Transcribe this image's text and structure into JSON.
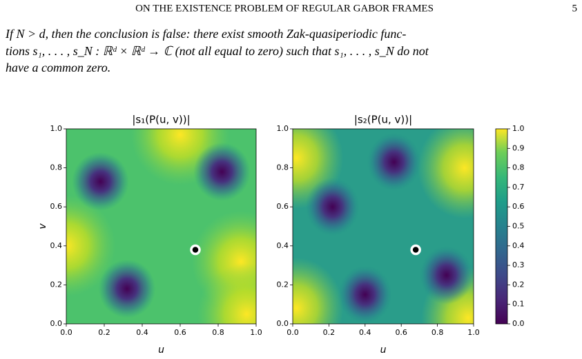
{
  "header": {
    "title": "ON THE EXISTENCE PROBLEM OF REGULAR GABOR FRAMES",
    "page": "5"
  },
  "paragraph": [
    "If N > d, then the conclusion is false: there exist smooth Zak-quasiperiodic func-",
    "tions s₁, . . . , s_N : ℝᵈ × ℝᵈ → ℂ (not all equal to zero) such that s₁, . . . , s_N do not",
    "have a common zero."
  ],
  "chart_data": [
    {
      "type": "heatmap",
      "title": "|s₁(P(u, v))|",
      "xlabel": "u",
      "ylabel": "v",
      "xlim": [
        0,
        1
      ],
      "ylim": [
        0,
        1
      ],
      "xticks": [
        {
          "value": 0,
          "label": "0.0"
        },
        {
          "value": 0.2,
          "label": "0.2"
        },
        {
          "value": 0.4,
          "label": "0.4"
        },
        {
          "value": 0.6,
          "label": "0.6"
        },
        {
          "value": 0.8,
          "label": "0.8"
        },
        {
          "value": 1,
          "label": "1.0"
        }
      ],
      "yticks": [
        {
          "value": 0,
          "label": "0.0"
        },
        {
          "value": 0.2,
          "label": "0.2"
        },
        {
          "value": 0.4,
          "label": "0.4"
        },
        {
          "value": 0.6,
          "label": "0.6"
        },
        {
          "value": 0.8,
          "label": "0.8"
        },
        {
          "value": 1,
          "label": "1.0"
        }
      ],
      "high_points": {
        "x": [
          0.0,
          0.92,
          0.6,
          0.95
        ],
        "y": [
          0.4,
          0.32,
          0.97,
          0.05
        ]
      },
      "low_points": {
        "x": [
          0.18,
          0.82,
          0.32
        ],
        "y": [
          0.73,
          0.78,
          0.18
        ]
      },
      "marker": {
        "x": 0.68,
        "y": 0.38
      }
    },
    {
      "type": "heatmap",
      "title": "|s₂(P(u, v))|",
      "xlabel": "u",
      "xlim": [
        0,
        1
      ],
      "ylim": [
        0,
        1
      ],
      "xticks": [
        {
          "value": 0,
          "label": "0.0"
        },
        {
          "value": 0.2,
          "label": "0.2"
        },
        {
          "value": 0.4,
          "label": "0.4"
        },
        {
          "value": 0.6,
          "label": "0.6"
        },
        {
          "value": 0.8,
          "label": "0.8"
        },
        {
          "value": 1,
          "label": "1.0"
        }
      ],
      "yticks": [
        {
          "value": 0,
          "label": "0.0"
        },
        {
          "value": 0.2,
          "label": "0.2"
        },
        {
          "value": 0.4,
          "label": "0.4"
        },
        {
          "value": 0.6,
          "label": "0.6"
        },
        {
          "value": 0.8,
          "label": "0.8"
        },
        {
          "value": 1,
          "label": "1.0"
        }
      ],
      "high_points": {
        "x": [
          0.02,
          0.95,
          0.02,
          0.97
        ],
        "y": [
          0.85,
          0.8,
          0.08,
          0.03
        ]
      },
      "low_points": {
        "x": [
          0.22,
          0.56,
          0.4,
          0.85
        ],
        "y": [
          0.6,
          0.83,
          0.15,
          0.25
        ]
      },
      "marker": {
        "x": 0.68,
        "y": 0.38
      }
    }
  ],
  "colorbar": {
    "lim": [
      0,
      1
    ],
    "colormap": "viridis",
    "ticks": [
      {
        "value": 0,
        "label": "0.0"
      },
      {
        "value": 0.1,
        "label": "0.1"
      },
      {
        "value": 0.2,
        "label": "0.2"
      },
      {
        "value": 0.3,
        "label": "0.3"
      },
      {
        "value": 0.4,
        "label": "0.4"
      },
      {
        "value": 0.5,
        "label": "0.5"
      },
      {
        "value": 0.6,
        "label": "0.6"
      },
      {
        "value": 0.7,
        "label": "0.7"
      },
      {
        "value": 0.8,
        "label": "0.8"
      },
      {
        "value": 0.9,
        "label": "0.9"
      },
      {
        "value": 1,
        "label": "1.0"
      }
    ]
  }
}
